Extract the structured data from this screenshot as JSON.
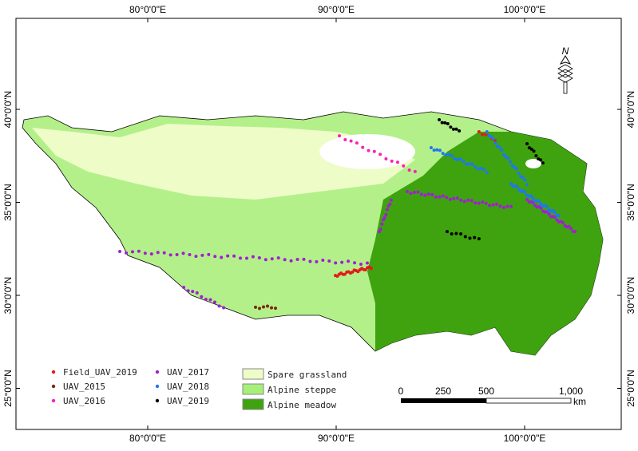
{
  "axes": {
    "top_ticks": [
      {
        "lon": 80,
        "label": "80°0'0\"E"
      },
      {
        "lon": 90,
        "label": "90°0'0\"E"
      },
      {
        "lon": 100,
        "label": "100°0'0\"E"
      }
    ],
    "side_ticks": [
      {
        "lat": 40,
        "label": "40°0'0\"N"
      },
      {
        "lat": 35,
        "label": "35°0'0\"N"
      },
      {
        "lat": 30,
        "label": "30°0'0\"N"
      },
      {
        "lat": 25,
        "label": "25°0'0\"N"
      }
    ]
  },
  "north_arrow": {
    "label": "N"
  },
  "legend": {
    "points": [
      {
        "label": "Field_UAV_2019",
        "color": "#e31a1c"
      },
      {
        "label": "UAV_2015",
        "color": "#7a2a12"
      },
      {
        "label": "UAV_2016",
        "color": "#ff1fb4"
      },
      {
        "label": "UAV_2017",
        "color": "#a020d0"
      },
      {
        "label": "UAV_2018",
        "color": "#1e78f0"
      },
      {
        "label": "UAV_2019",
        "color": "#000000"
      }
    ],
    "classes": [
      {
        "label": "Spare grassland",
        "color": "#eefcc8"
      },
      {
        "label": "Alpine steppe",
        "color": "#a6f07a"
      },
      {
        "label": "Alpine meadow",
        "color": "#3ea30e"
      }
    ]
  },
  "scale_bar": {
    "labels": [
      "0",
      "250",
      "500",
      "1,000"
    ],
    "unit": "km"
  },
  "tracks": [
    {
      "series": 3,
      "from": [
        78.52,
        32.36
      ],
      "to": [
        91.65,
        31.72
      ],
      "n": 40
    },
    {
      "series": 3,
      "from": [
        81.91,
        30.43
      ],
      "to": [
        84.03,
        29.36
      ],
      "n": 10
    },
    {
      "series": 3,
      "from": [
        92.29,
        33.43
      ],
      "to": [
        92.92,
        35.15
      ],
      "n": 10
    },
    {
      "series": 3,
      "from": [
        93.77,
        35.58
      ],
      "to": [
        99.28,
        34.72
      ],
      "n": 30
    },
    {
      "series": 3,
      "from": [
        100.13,
        35.15
      ],
      "to": [
        102.67,
        33.43
      ],
      "n": 25
    },
    {
      "series": 0,
      "from": [
        89.96,
        31.07
      ],
      "to": [
        91.86,
        31.5
      ],
      "n": 20
    },
    {
      "series": 0,
      "from": [
        97.58,
        38.8
      ],
      "to": [
        98.43,
        38.37
      ],
      "n": 6
    },
    {
      "series": 4,
      "from": [
        95.04,
        37.94
      ],
      "to": [
        98.0,
        36.65
      ],
      "n": 20
    },
    {
      "series": 4,
      "from": [
        98.0,
        38.8
      ],
      "to": [
        100.13,
        36.0
      ],
      "n": 20
    },
    {
      "series": 4,
      "from": [
        99.28,
        36.0
      ],
      "to": [
        101.82,
        34.29
      ],
      "n": 25
    },
    {
      "series": 5,
      "from": [
        95.47,
        39.44
      ],
      "to": [
        96.53,
        38.8
      ],
      "n": 8
    },
    {
      "series": 5,
      "from": [
        100.13,
        38.15
      ],
      "to": [
        100.97,
        37.08
      ],
      "n": 8
    },
    {
      "series": 5,
      "from": [
        95.89,
        33.43
      ],
      "to": [
        97.58,
        33.0
      ],
      "n": 8
    },
    {
      "series": 1,
      "from": [
        85.72,
        29.36
      ],
      "to": [
        86.78,
        29.36
      ],
      "n": 6
    },
    {
      "series": 2,
      "from": [
        90.17,
        38.58
      ],
      "to": [
        94.19,
        36.65
      ],
      "n": 14
    }
  ]
}
